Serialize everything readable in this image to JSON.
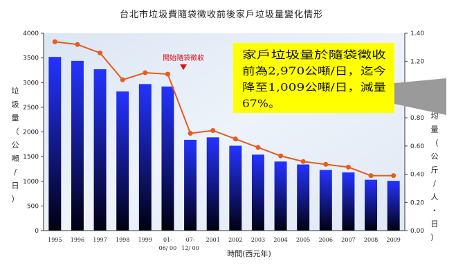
{
  "chart_data": {
    "type": "bar",
    "title": "台北市垃圾費隨袋徵收前後家戶垃圾量變化情形",
    "categories": [
      "1995",
      "1996",
      "1997",
      "1998",
      "1999",
      "01-06/00",
      "07-12/00",
      "2001",
      "2002",
      "2003",
      "2004",
      "2005",
      "2006",
      "2007",
      "2008",
      "2009"
    ],
    "category_lines": [
      [
        "1995"
      ],
      [
        "1996"
      ],
      [
        "1997"
      ],
      [
        "1998"
      ],
      [
        "1999"
      ],
      [
        "01-",
        "06/ 00"
      ],
      [
        "07-",
        "12/ 00"
      ],
      [
        "2001"
      ],
      [
        "2002"
      ],
      [
        "2003"
      ],
      [
        "2004"
      ],
      [
        "2005"
      ],
      [
        "2006"
      ],
      [
        "2007"
      ],
      [
        "2008"
      ],
      [
        "2009"
      ]
    ],
    "series": [
      {
        "name": "",
        "type": "bar",
        "axis": "left",
        "values": [
          3520,
          3440,
          3270,
          2820,
          2970,
          2920,
          1840,
          1890,
          1720,
          1540,
          1400,
          1340,
          1230,
          1180,
          1030,
          1009
        ]
      },
      {
        "name": "",
        "type": "line",
        "axis": "right",
        "values": [
          1.34,
          1.32,
          1.26,
          1.07,
          1.12,
          1.11,
          0.69,
          0.71,
          0.65,
          0.59,
          0.53,
          0.49,
          0.47,
          0.45,
          0.39,
          0.39
        ]
      }
    ],
    "y_left": {
      "label": "垃圾量（公噸/日）",
      "ylim": [
        0,
        4000
      ],
      "ticks": [
        "0",
        "500",
        "1000",
        "1500",
        "2000",
        "2500",
        "3000",
        "3500",
        "4000"
      ]
    },
    "y_right": {
      "label": "日人均量（公斤/人・日）",
      "ylim": [
        0,
        1.4
      ],
      "ticks": [
        "0.00",
        "0.20",
        "0.40",
        "0.60",
        "0.80",
        "1.00",
        "1.20",
        "1.40"
      ]
    },
    "xlabel": "時間(西元年)",
    "grid": false,
    "marker": {
      "label": "開始隨袋徵收",
      "at_category": "07-12/00"
    },
    "callout": {
      "lines": [
        "家戶垃圾量於隨袋徵收",
        "前為2,970公噸/日，迄今",
        "降至1,009公噸/日，減量",
        "67%。"
      ]
    },
    "colors": {
      "bar_top": "#2433ff",
      "bar_bottom": "#000010",
      "line": "#e85a1e",
      "plot_background": "#e6eef8",
      "callout_fill": "#ffff00",
      "marker": "#d8101a"
    }
  }
}
